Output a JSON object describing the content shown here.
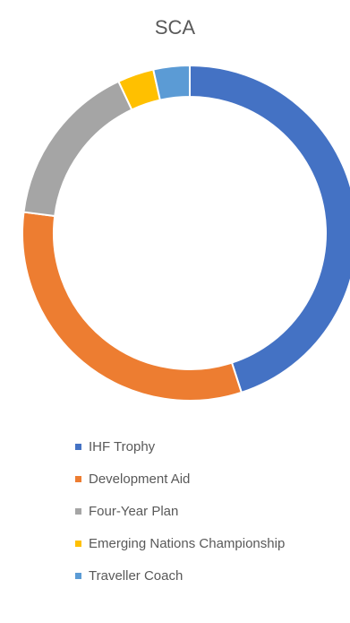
{
  "chart_data": {
    "type": "pie",
    "variant": "donut",
    "title": "SCA",
    "categories": [
      "IHF Trophy",
      "Development Aid",
      "Four-Year Plan",
      "Emerging Nations Championship",
      "Traveller Coach"
    ],
    "values": [
      45,
      32,
      16,
      3.5,
      3.5
    ],
    "colors": [
      "#4472C4",
      "#ED7D31",
      "#A5A5A5",
      "#FFC000",
      "#5B9BD5"
    ],
    "legend_position": "bottom"
  }
}
